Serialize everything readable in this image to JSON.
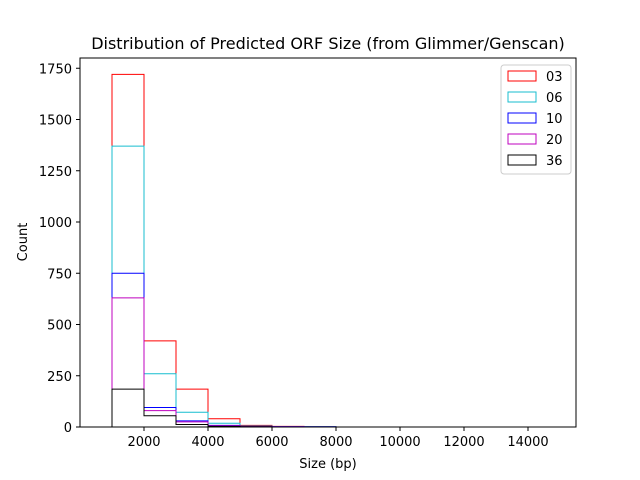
{
  "chart_data": {
    "type": "histogram-step",
    "title": "Distribution of Predicted ORF Size (from Glimmer/Genscan)",
    "xlabel": "Size (bp)",
    "ylabel": "Count",
    "xlim": [
      0,
      15500
    ],
    "ylim": [
      0,
      1800
    ],
    "xticks": [
      2000,
      4000,
      6000,
      8000,
      10000,
      12000,
      14000
    ],
    "yticks": [
      0,
      250,
      500,
      750,
      1000,
      1250,
      1500,
      1750
    ],
    "bin_edges": [
      1000,
      2000,
      3000,
      4000,
      5000,
      6000,
      7000,
      8000,
      9000,
      10000,
      11000,
      12000,
      13000,
      14000,
      15000
    ],
    "legend_position": "top-right",
    "series": [
      {
        "name": "03",
        "color": "#ff0000",
        "values": [
          1720,
          420,
          185,
          40,
          8,
          3,
          1,
          0,
          0,
          0,
          0,
          0,
          0,
          0
        ]
      },
      {
        "name": "06",
        "color": "#17becf",
        "values": [
          1370,
          260,
          72,
          18,
          5,
          2,
          1,
          0,
          0,
          0,
          0,
          0,
          0,
          0
        ]
      },
      {
        "name": "10",
        "color": "#0000ff",
        "values": [
          750,
          95,
          30,
          8,
          3,
          2,
          1,
          0,
          0,
          0,
          0,
          0,
          0,
          0
        ]
      },
      {
        "name": "20",
        "color": "#bf00bf",
        "values": [
          630,
          80,
          25,
          6,
          2,
          1,
          0,
          0,
          0,
          0,
          0,
          0,
          0,
          0
        ]
      },
      {
        "name": "36",
        "color": "#000000",
        "values": [
          185,
          55,
          12,
          3,
          1,
          0,
          0,
          0,
          0,
          0,
          0,
          0,
          0,
          0
        ]
      }
    ]
  }
}
